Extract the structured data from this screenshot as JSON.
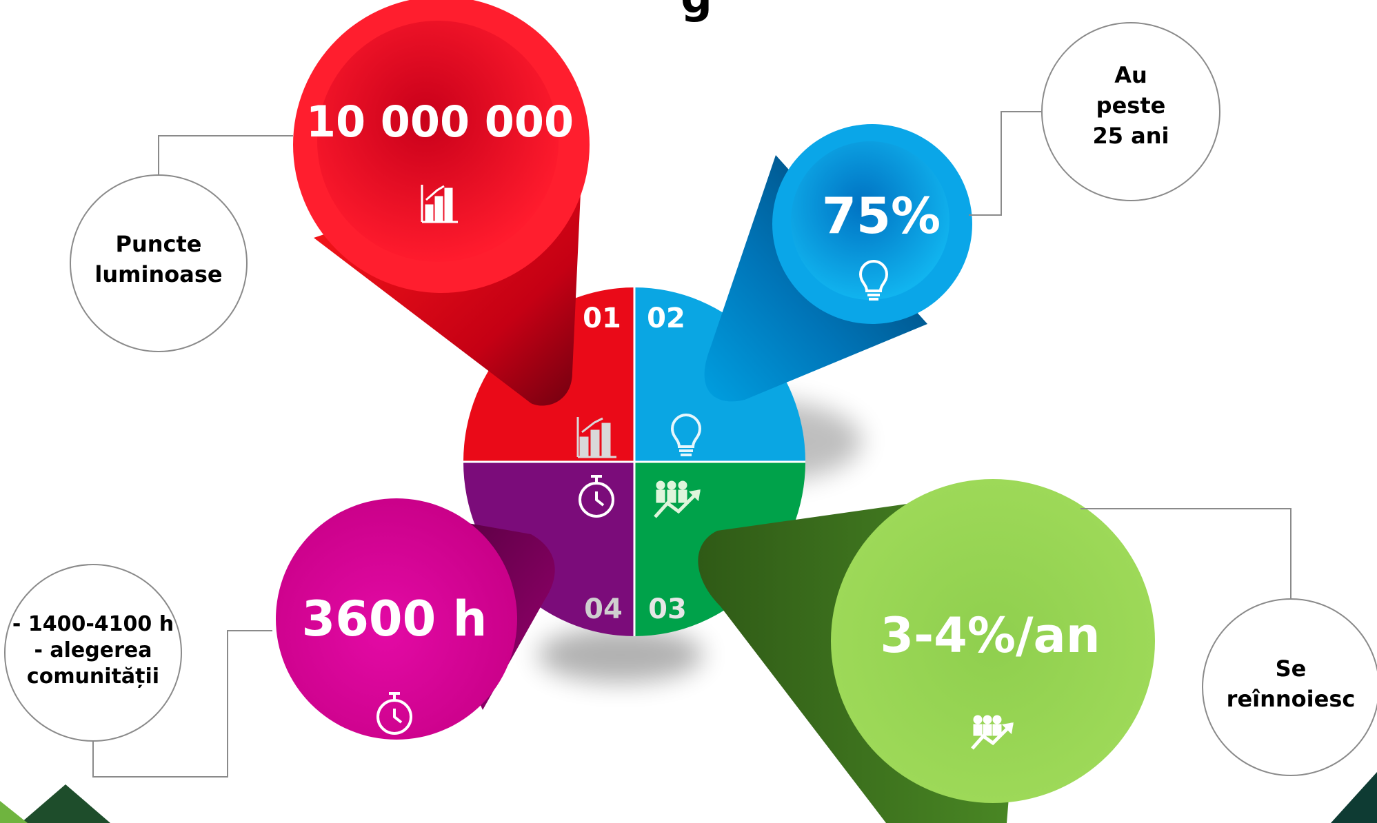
{
  "title_partial": "g",
  "bubbles": {
    "red": {
      "value": "10 000 000",
      "icon": "bar-chart-icon",
      "color": "#e8001c"
    },
    "blue": {
      "value": "75%",
      "icon": "lightbulb-icon",
      "color": "#009fe0"
    },
    "magenta": {
      "value": "3600 h",
      "icon": "stopwatch-icon",
      "color": "#d3008f"
    },
    "green": {
      "value": "3-4%/an",
      "icon": "people-growth-icon",
      "color": "#7dc242"
    }
  },
  "quadrants": {
    "q1": "01",
    "q2": "02",
    "q3": "03",
    "q4": "04"
  },
  "callouts": {
    "top_left": {
      "lines": [
        "Puncte",
        "luminoase"
      ]
    },
    "top_right": {
      "lines": [
        "Au",
        "peste",
        "25 ani"
      ]
    },
    "bottom_left": {
      "lines": [
        "- 1400-4100 h",
        "- alegerea",
        "comunității"
      ]
    },
    "bottom_right": {
      "lines": [
        "Se",
        "reînnoiesc"
      ]
    }
  }
}
